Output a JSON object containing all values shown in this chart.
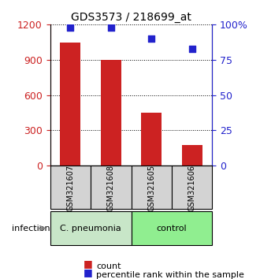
{
  "title": "GDS3573 / 218699_at",
  "samples": [
    "GSM321607",
    "GSM321608",
    "GSM321605",
    "GSM321606"
  ],
  "counts": [
    1050,
    900,
    450,
    175
  ],
  "percentiles": [
    98,
    98,
    90,
    83
  ],
  "bar_color": "#CC2222",
  "dot_color": "#2222CC",
  "ylim_left": [
    0,
    1200
  ],
  "ylim_right": [
    0,
    100
  ],
  "yticks_left": [
    0,
    300,
    600,
    900,
    1200
  ],
  "yticks_right": [
    0,
    25,
    50,
    75,
    100
  ],
  "yticklabels_right": [
    "0",
    "25",
    "50",
    "75",
    "100%"
  ],
  "groups": [
    {
      "label": "C. pneumonia",
      "color": "#C8E6C8",
      "samples": [
        0,
        1
      ]
    },
    {
      "label": "control",
      "color": "#90EE90",
      "samples": [
        2,
        3
      ]
    }
  ],
  "xlabel_infection": "infection",
  "legend_count": "count",
  "legend_percentile": "percentile rank within the sample",
  "background_color": "#ffffff",
  "grid_color": "#000000",
  "label_color_left": "#CC2222",
  "label_color_right": "#2222CC"
}
